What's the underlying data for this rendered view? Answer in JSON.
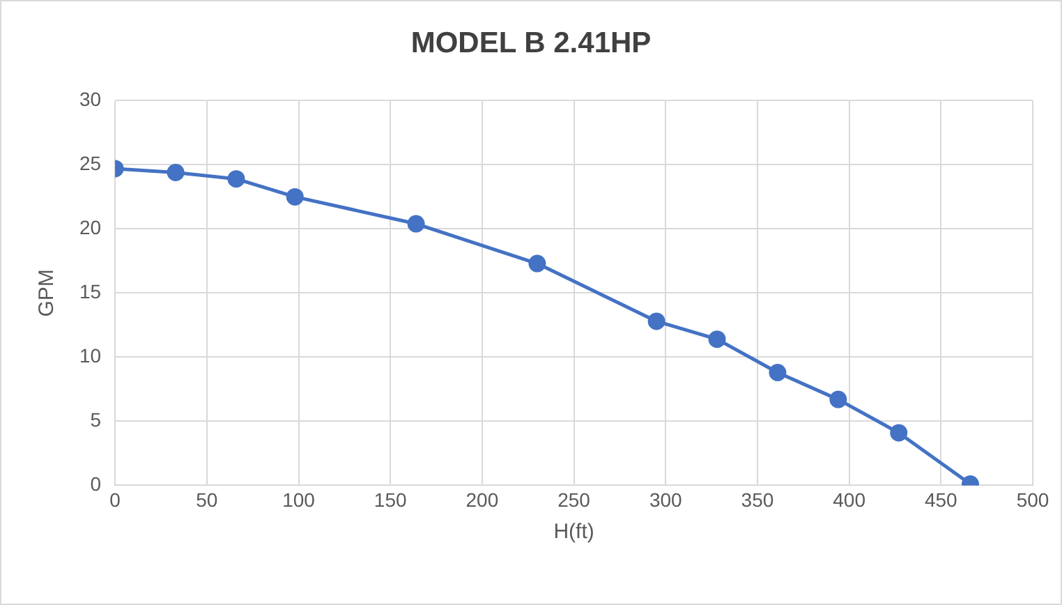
{
  "chart_data": {
    "type": "line",
    "title": "MODEL B 2.41HP",
    "xlabel": "H(ft)",
    "ylabel": "GPM",
    "x": [
      0,
      33,
      66,
      98,
      164,
      230,
      295,
      328,
      361,
      394,
      427,
      466
    ],
    "series": [
      {
        "color": "#4472c4",
        "values": [
          24.7,
          24.4,
          23.9,
          22.5,
          20.4,
          17.3,
          12.8,
          11.4,
          8.8,
          6.7,
          4.1,
          0.1
        ]
      }
    ],
    "xlim": [
      0,
      500
    ],
    "xticks": [
      0,
      50,
      100,
      150,
      200,
      250,
      300,
      350,
      400,
      450,
      500
    ],
    "ylim": [
      0,
      30
    ],
    "yticks": [
      0,
      5,
      10,
      15,
      20,
      25,
      30
    ],
    "grid": true,
    "marker": "circle",
    "line_style": "solid",
    "legend": false
  }
}
